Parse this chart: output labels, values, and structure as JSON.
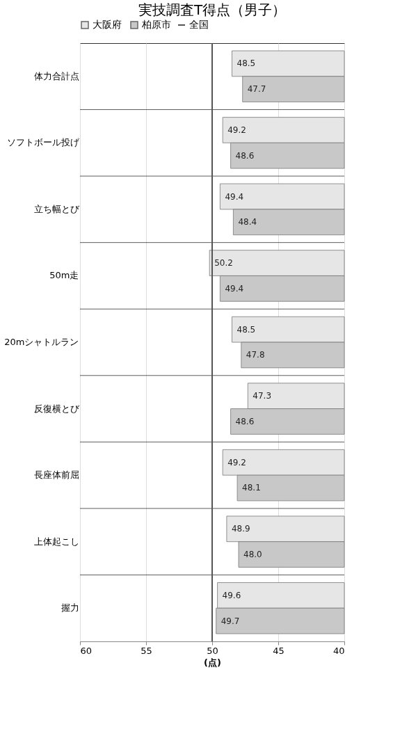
{
  "chart_data": {
    "type": "bar",
    "orientation": "horizontal",
    "title": "実技調査T得点（男子）",
    "xlabel": "(点)",
    "categories": [
      "体力合計点",
      "ソフトボール投げ",
      "立ち幅とび",
      "50m走",
      "20mシャトルラン",
      "反復横とび",
      "長座体前屈",
      "上体起こし",
      "握力"
    ],
    "series": [
      {
        "name": "大阪府",
        "color": "#e6e6e6",
        "values": [
          48.5,
          49.2,
          49.4,
          50.2,
          48.5,
          47.3,
          49.2,
          48.9,
          49.6
        ],
        "value_labels": [
          "48.5",
          "49.2",
          "49.4",
          "50.2",
          "48.5",
          "47.3",
          "49.2",
          "48.9",
          "49.6"
        ]
      },
      {
        "name": "柏原市",
        "color": "#c8c8c8",
        "values": [
          47.7,
          48.6,
          48.4,
          49.4,
          47.8,
          48.6,
          48.1,
          48.0,
          49.7
        ],
        "value_labels": [
          "47.7",
          "48.6",
          "48.4",
          "49.4",
          "47.8",
          "48.6",
          "48.1",
          "48.0",
          "49.7"
        ]
      }
    ],
    "xlim": [
      60,
      40
    ],
    "xticks": [
      60,
      55,
      50,
      45,
      40
    ],
    "ref_lines": [
      {
        "axis": "x",
        "value": 50,
        "label": "全国",
        "color": "#555555"
      }
    ],
    "grid": true,
    "legend": "top"
  }
}
